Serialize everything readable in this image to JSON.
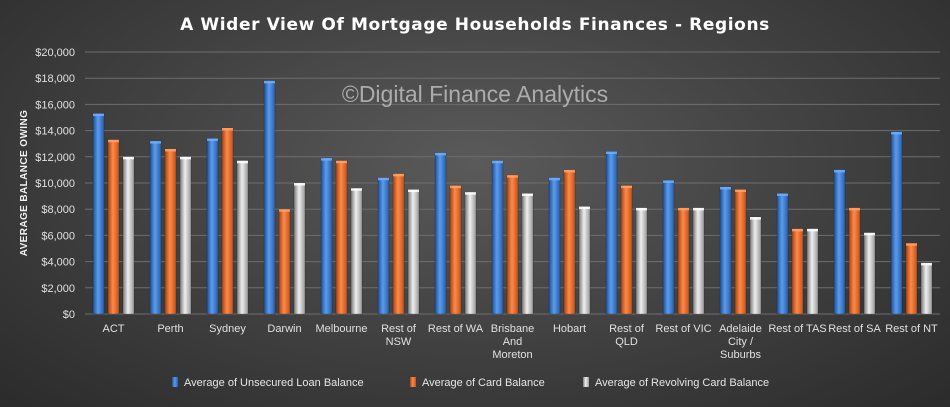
{
  "chart_data": {
    "type": "bar",
    "title": "A Wider View Of Mortgage Households Finances - Regions",
    "ylabel": "AVERAGE BALANCE OWING",
    "xlabel": "",
    "ylim": [
      0,
      20000
    ],
    "yticks": [
      0,
      2000,
      4000,
      6000,
      8000,
      10000,
      12000,
      14000,
      16000,
      18000,
      20000
    ],
    "ytick_labels": [
      "$0",
      "$2,000",
      "$4,000",
      "$6,000",
      "$8,000",
      "$10,000",
      "$12,000",
      "$14,000",
      "$16,000",
      "$18,000",
      "$20,000"
    ],
    "grid": true,
    "legend_position": "bottom",
    "categories": [
      "ACT",
      "Perth",
      "Sydney",
      "Darwin",
      "Melbourne",
      "Rest of NSW",
      "Rest of WA",
      "Brisbane And Moreton",
      "Hobart",
      "Rest of QLD",
      "Rest of VIC",
      "Adelaide City / Suburbs",
      "Rest of TAS",
      "Rest of SA",
      "Rest of NT"
    ],
    "category_label_lines": [
      [
        "ACT"
      ],
      [
        "Perth"
      ],
      [
        "Sydney"
      ],
      [
        "Darwin"
      ],
      [
        "Melbourne"
      ],
      [
        "Rest of",
        "NSW"
      ],
      [
        "Rest of WA"
      ],
      [
        "Brisbane",
        "And",
        "Moreton"
      ],
      [
        "Hobart"
      ],
      [
        "Rest of",
        "QLD"
      ],
      [
        "Rest of VIC"
      ],
      [
        "Adelaide",
        "City /",
        "Suburbs"
      ],
      [
        "Rest of TAS"
      ],
      [
        "Rest of SA"
      ],
      [
        "Rest of NT"
      ]
    ],
    "series": [
      {
        "name": "Average of Unsecured Loan Balance",
        "color": "#3f7fd0",
        "values": [
          15300,
          13200,
          13400,
          17800,
          11900,
          10400,
          12300,
          11700,
          10400,
          12400,
          10200,
          9700,
          9200,
          11000,
          13900
        ]
      },
      {
        "name": "Average of Card Balance",
        "color": "#e8682a",
        "values": [
          13300,
          12600,
          14200,
          8000,
          11700,
          10700,
          9800,
          10600,
          11000,
          9800,
          8100,
          9500,
          6500,
          8100,
          5400
        ]
      },
      {
        "name": "Average of Revolving Card Balance",
        "color": "#bdbdbd",
        "values": [
          12000,
          12000,
          11700,
          10000,
          9600,
          9500,
          9300,
          9200,
          8200,
          8100,
          8100,
          7400,
          6500,
          6200,
          3900
        ]
      }
    ]
  },
  "watermark": "©Digital Finance Analytics"
}
